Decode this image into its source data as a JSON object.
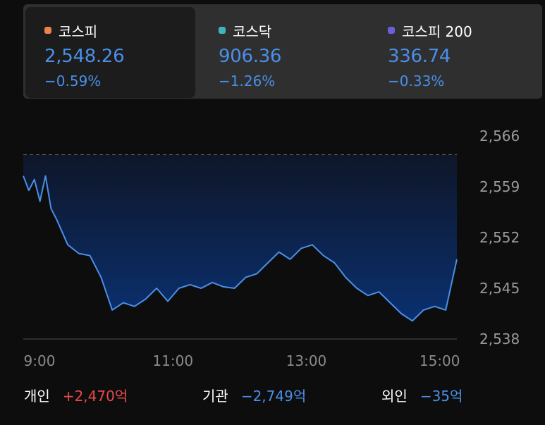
{
  "indices": [
    {
      "name": "코스피",
      "value": "2,548.26",
      "change": "−0.59%",
      "dot_color": "#e8834b",
      "value_color": "#4a8fe8",
      "active": true
    },
    {
      "name": "코스닥",
      "value": "906.36",
      "change": "−1.26%",
      "dot_color": "#3fb5c2",
      "value_color": "#4a8fe8",
      "active": false
    },
    {
      "name": "코스피 200",
      "value": "336.74",
      "change": "−0.33%",
      "dot_color": "#6a5fd8",
      "value_color": "#4a8fe8",
      "active": false
    }
  ],
  "chart_data": {
    "type": "line",
    "title": "",
    "xlabel": "",
    "ylabel": "",
    "ylim": [
      2538,
      2566
    ],
    "y_ticks": [
      "2,566",
      "2,559",
      "2,552",
      "2,545",
      "2,538"
    ],
    "x_ticks": [
      "9:00",
      "11:00",
      "13:00",
      "15:00"
    ],
    "reference_line": 2563.4,
    "line_color": "#4a8fe8",
    "x": [
      "09:00",
      "09:05",
      "09:10",
      "09:15",
      "09:20",
      "09:25",
      "09:30",
      "09:40",
      "09:50",
      "10:00",
      "10:10",
      "10:20",
      "10:30",
      "10:40",
      "10:50",
      "11:00",
      "11:10",
      "11:20",
      "11:30",
      "11:40",
      "11:50",
      "12:00",
      "12:10",
      "12:20",
      "12:30",
      "12:40",
      "12:50",
      "13:00",
      "13:10",
      "13:20",
      "13:30",
      "13:40",
      "13:50",
      "14:00",
      "14:10",
      "14:20",
      "14:30",
      "14:40",
      "14:50",
      "15:00",
      "15:10",
      "15:20",
      "15:30"
    ],
    "y": [
      2560.5,
      2558.5,
      2560.0,
      2557.0,
      2560.5,
      2556.0,
      2554.5,
      2551.0,
      2549.8,
      2549.5,
      2546.5,
      2542.0,
      2543.0,
      2542.5,
      2543.5,
      2545.0,
      2543.2,
      2545.0,
      2545.5,
      2545.0,
      2545.8,
      2545.2,
      2545.0,
      2546.5,
      2547.0,
      2548.5,
      2550.0,
      2549.0,
      2550.5,
      2551.0,
      2549.5,
      2548.5,
      2546.5,
      2545.0,
      2544.0,
      2544.5,
      2543.0,
      2541.5,
      2540.5,
      2542.0,
      2542.5,
      2542.0,
      2549.0
    ]
  },
  "investors": [
    {
      "label": "개인",
      "value": "+2,470억",
      "color": "#e84a4a"
    },
    {
      "label": "기관",
      "value": "−2,749억",
      "color": "#4a8fe8"
    },
    {
      "label": "외인",
      "value": "−35억",
      "color": "#4a8fe8"
    }
  ]
}
